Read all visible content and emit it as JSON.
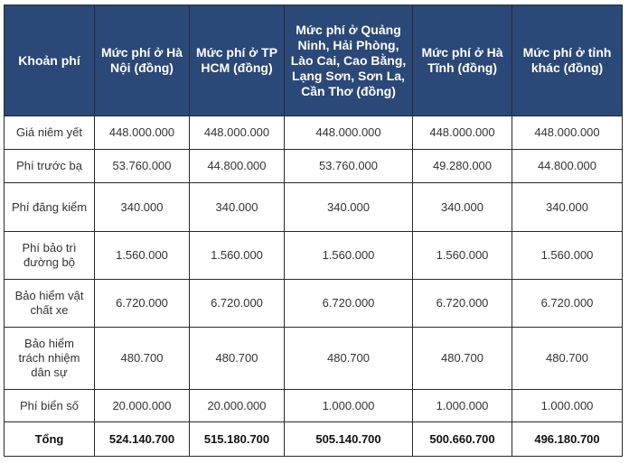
{
  "table": {
    "headers": [
      "Khoản phí",
      "Mức phí ở Hà Nội (đồng)",
      "Mức phí ở TP HCM (đồng)",
      "Mức phí ở Quảng Ninh, Hải Phòng, Lào Cai, Cao Bằng, Lạng Sơn, Sơn La, Cần Thơ (đồng)",
      "Mức phí ở Hà Tĩnh (đồng)",
      "Mức phí ở tỉnh khác (đồng)"
    ],
    "rows": [
      {
        "label": "Giá niêm yết",
        "values": [
          "448.000.000",
          "448.000.000",
          "448.000.000",
          "448.000.000",
          "448.000.000"
        ]
      },
      {
        "label": "Phí trước bạ",
        "values": [
          "53.760.000",
          "44.800.000",
          "53.760.000",
          "49.280.000",
          "44.800.000"
        ]
      },
      {
        "label": "Phí đăng kiểm",
        "values": [
          "340.000",
          "340.000",
          "340.000",
          "340.000",
          "340.000"
        ]
      },
      {
        "label": "Phí bảo trì đường bộ",
        "values": [
          "1.560.000",
          "1.560.000",
          "1.560.000",
          "1.560.000",
          "1.560.000"
        ]
      },
      {
        "label": "Bảo hiểm vật chất xe",
        "values": [
          "6.720.000",
          "6.720.000",
          "6.720.000",
          "6.720.000",
          "6.720.000"
        ]
      },
      {
        "label": "Bảo hiểm trách nhiệm dân sự",
        "values": [
          "480.700",
          "480.700",
          "480.700",
          "480.700",
          "480.700"
        ]
      },
      {
        "label": "Phí biển số",
        "values": [
          "20.000.000",
          "20.000.000",
          "1.000.000",
          "1.000.000",
          "1.000.000"
        ]
      }
    ],
    "total": {
      "label": "Tổng",
      "values": [
        "524.140.700",
        "515.180.700",
        "505.140.700",
        "500.660.700",
        "496.180.700"
      ]
    }
  }
}
